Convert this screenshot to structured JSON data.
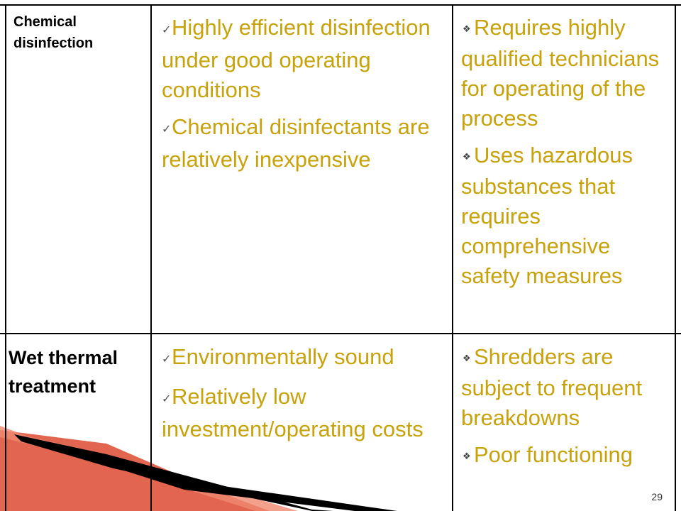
{
  "rows": [
    {
      "label": "Chemical disinfection",
      "advantages": [
        "Highly efficient disinfection under good operating conditions",
        "Chemical disinfectants are relatively inexpensive"
      ],
      "disadvantages": [
        "Requires highly qualified technicians  for operating of the process",
        "Uses hazardous substances that requires comprehensive safety measures"
      ]
    },
    {
      "label": "Wet thermal treatment",
      "advantages": [
        "Environmentally sound",
        "Relatively low investment/operating costs"
      ],
      "disadvantages": [
        "Shredders are subject to frequent breakdowns",
        "Poor functioning"
      ]
    }
  ],
  "page_number": "29",
  "colors": {
    "advantage_text": "#c8a20a",
    "ribbon_fill": "#e2654f",
    "ribbon_edge": "#000000"
  },
  "icons": {
    "advantage_bullet": "checkmark-icon",
    "disadvantage_bullet": "diamond-bullet-icon"
  }
}
